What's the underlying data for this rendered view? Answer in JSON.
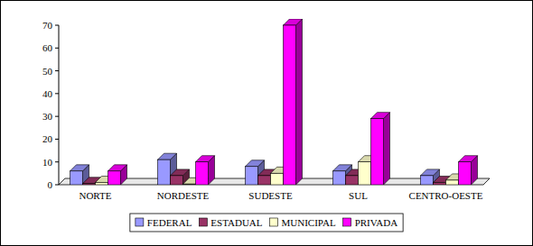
{
  "chart_data": {
    "type": "bar",
    "categories": [
      "NORTE",
      "NORDESTE",
      "SUDESTE",
      "SUL",
      "CENTRO-OESTE"
    ],
    "series": [
      {
        "name": "FEDERAL",
        "color": "#9999ff",
        "values": [
          6,
          11,
          8,
          6,
          4
        ]
      },
      {
        "name": "ESTADUAL",
        "color": "#993366",
        "values": [
          0.5,
          4,
          4,
          4,
          1
        ]
      },
      {
        "name": "MUNICIPAL",
        "color": "#ffffcc",
        "values": [
          1,
          0.3,
          5,
          10,
          2
        ]
      },
      {
        "name": "PRIVADA",
        "color": "#ff00ff",
        "values": [
          6,
          10,
          70,
          29,
          10
        ]
      }
    ],
    "ylim": [
      0,
      70
    ],
    "yticks": [
      0,
      10,
      20,
      30,
      40,
      50,
      60,
      70
    ],
    "grid": false,
    "legend": "bottom"
  }
}
